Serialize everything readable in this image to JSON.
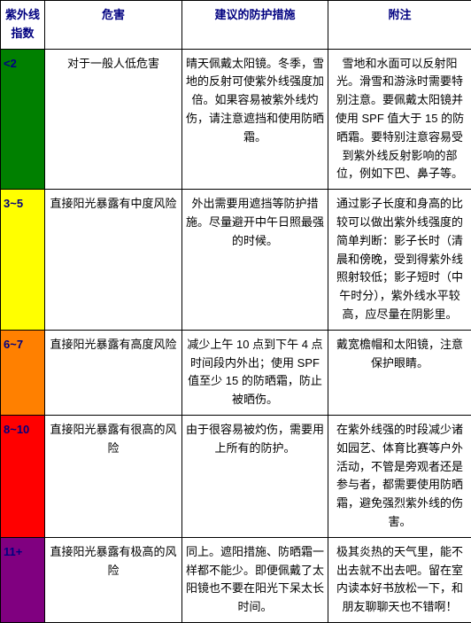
{
  "headers": {
    "index": "紫外线指数",
    "hazard": "危害",
    "measure": "建议的防护措施",
    "note": "附注"
  },
  "rows": [
    {
      "index": "<2",
      "hazard": "对于一般人低危害",
      "measure": "晴天佩戴太阳镜。冬季，雪地的反射可使紫外线强度加倍。如果容易被紫外线灼伤，请注意遮挡和使用防晒霜。",
      "note": "雪地和水面可以反射阳光。滑雪和游泳时需要特别注意。要佩戴太阳镜并使用 SPF 值大于 15 的防晒霜。要特别注意容易受到紫外线反射影响的部位，例如下巴、鼻子等。",
      "color": "#008000"
    },
    {
      "index": "3~5",
      "hazard": "直接阳光暴露有中度风险",
      "measure": "外出需要用遮挡等防护措施。尽量避开中午日照最强的时候。",
      "note": "通过影子长度和身高的比较可以做出紫外线强度的简单判断：影子长时（清晨和傍晚，受到得紫外线照射较低；影子短时（中午时分），紫外线水平较高，应尽量在阴影里。",
      "color": "#ffff00"
    },
    {
      "index": "6~7",
      "hazard": "直接阳光暴露有高度风险",
      "measure": "减少上午 10 点到下午 4 点时间段内外出；使用 SPF 值至少 15 的防晒霜，防止被晒伤。",
      "note": "戴宽檐帽和太阳镜，注意保护眼睛。",
      "color": "#ff8000"
    },
    {
      "index": "8~10",
      "hazard": "直接阳光暴露有很高的风险",
      "measure": "由于很容易被灼伤，需要用上所有的防护。",
      "note": "在紫外线强的时段减少诸如园艺、体育比赛等户外活动，不管是旁观者还是参与者，都需要使用防晒霜，避免强烈紫外线的伤害。",
      "color": "#ff0000"
    },
    {
      "index": "11+",
      "hazard": "直接阳光暴露有极高的风险",
      "measure": "同上。遮阳措施、防晒霜一样都不能少。即便佩戴了太阳镜也不要在阳光下呆太长时间。",
      "note": "极其炎热的天气里，能不出去就不出去吧。留在室内读本好书放松一下，和朋友聊聊天也不错啊！",
      "color": "#800080"
    }
  ]
}
